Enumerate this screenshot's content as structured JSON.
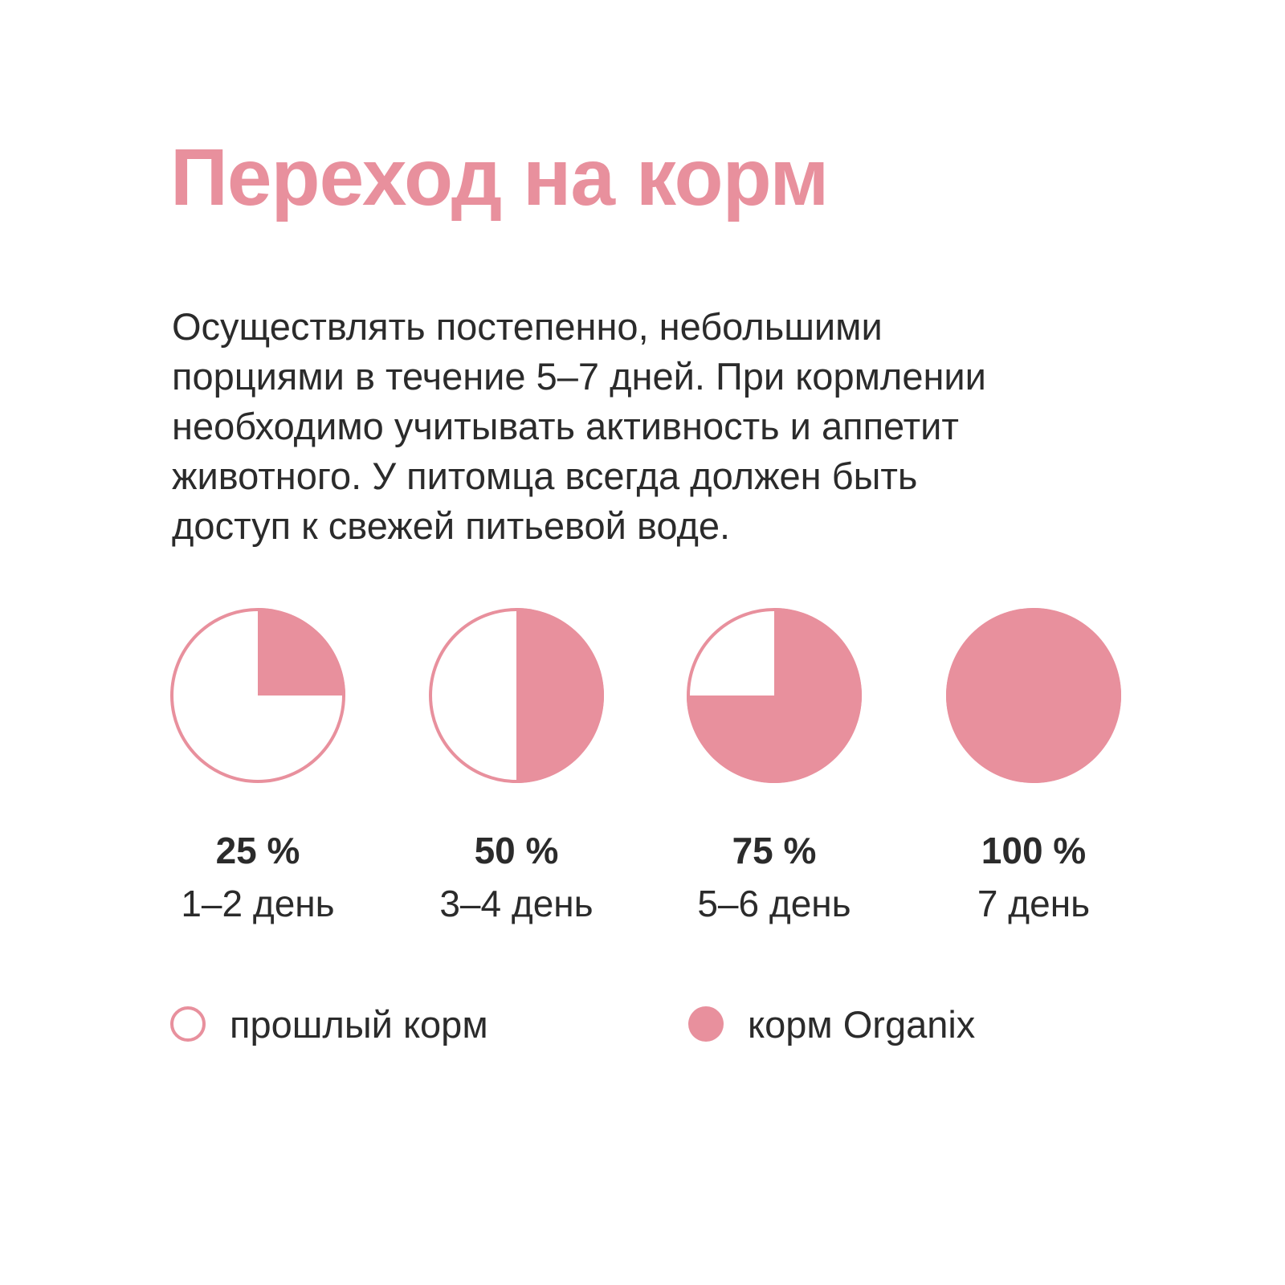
{
  "title": "Переход на корм",
  "description": [
    "Осуществлять постепенно, небольшими",
    "порциями в течение 5–7 дней. При кормлении",
    "необходимо учитывать активность и аппетит",
    "животного. У питомца всегда должен быть",
    "доступ к свежей питьевой воде."
  ],
  "colors": {
    "accent": "#e8909d",
    "text": "#2b2b2b",
    "background": "#ffffff"
  },
  "chart_data": {
    "type": "pie",
    "title": "",
    "stages": [
      {
        "value": 25,
        "value_label": "25 %",
        "day_label": "1–2 день"
      },
      {
        "value": 50,
        "value_label": "50 %",
        "day_label": "3–4 день"
      },
      {
        "value": 75,
        "value_label": "75 %",
        "day_label": "5–6 день"
      },
      {
        "value": 100,
        "value_label": "100 %",
        "day_label": "7 день"
      }
    ],
    "series": [
      {
        "name": "прошлый корм",
        "color": "#ffffff",
        "outline": "#e8909d"
      },
      {
        "name": "корм Organix",
        "color": "#e8909d"
      }
    ],
    "legend": "bottom-left"
  }
}
